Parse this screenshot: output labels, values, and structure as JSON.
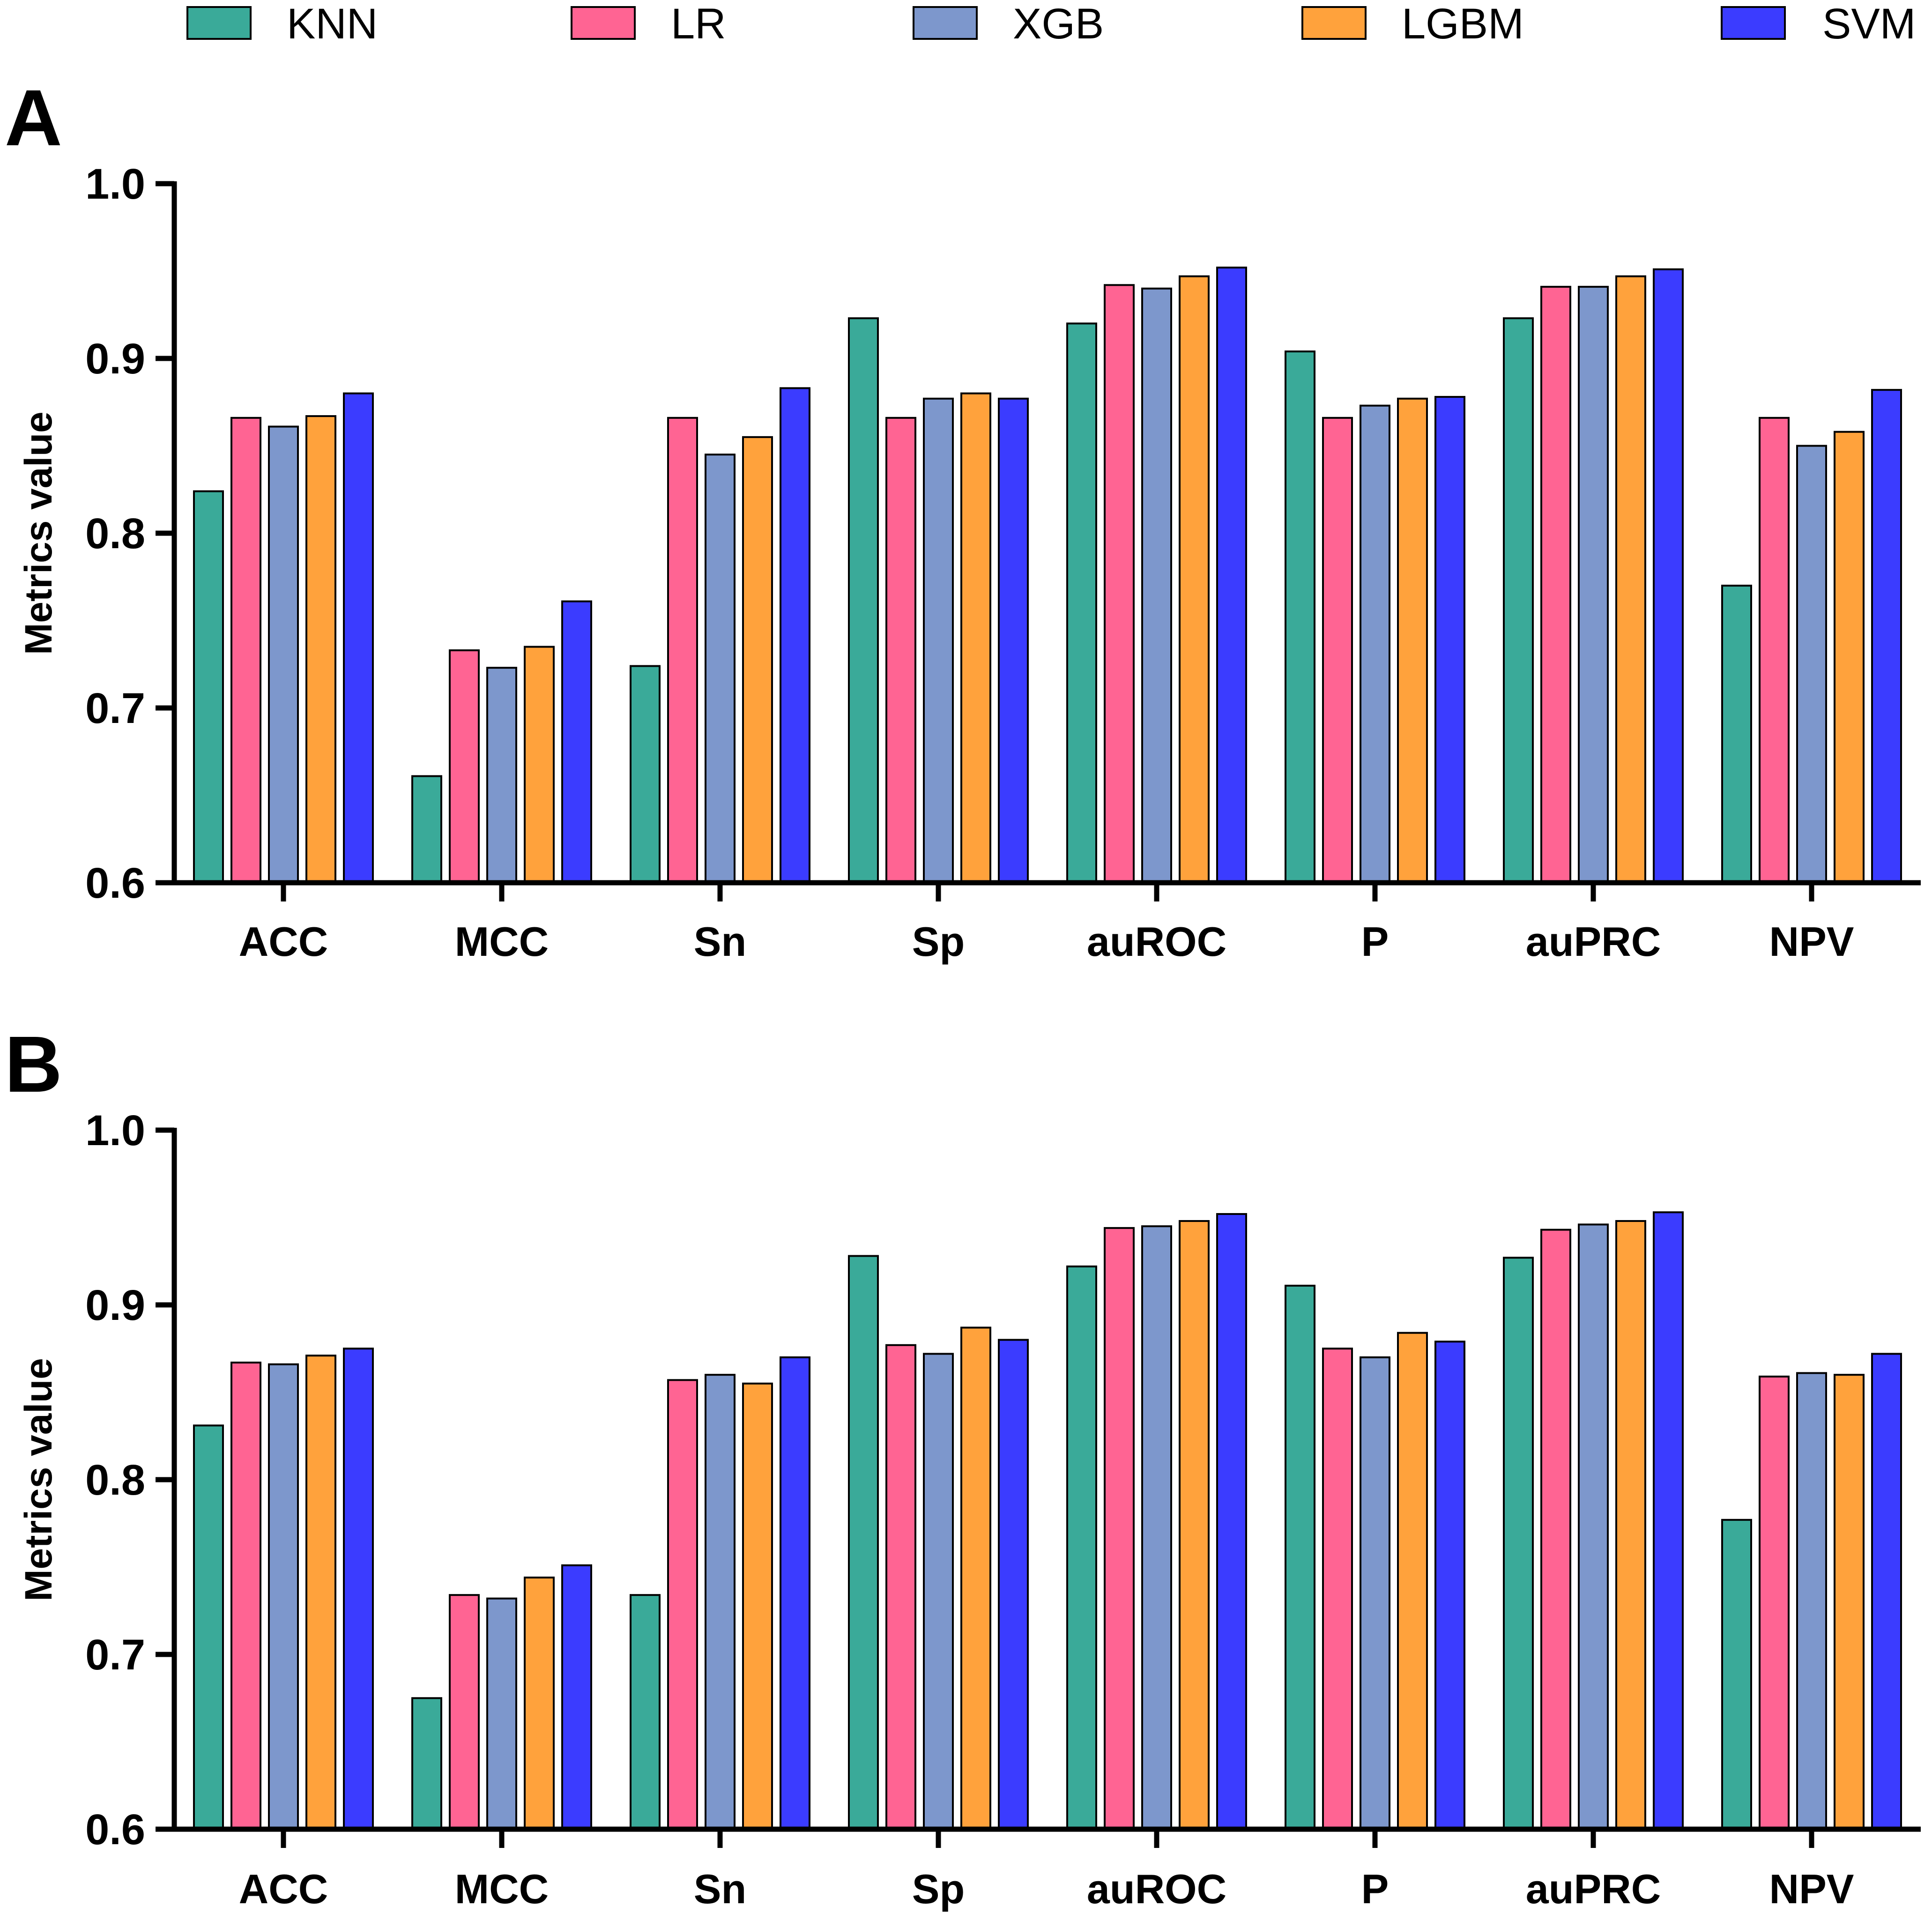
{
  "chart_data": [
    {
      "panel_label": "A",
      "type": "bar",
      "ylabel": "Metrics value",
      "ylim": [
        0.6,
        1.0
      ],
      "yticks": [
        "0.6",
        "0.7",
        "0.8",
        "0.9",
        "1.0"
      ],
      "categories": [
        "ACC",
        "MCC",
        "Sn",
        "Sp",
        "auROC",
        "P",
        "auPRC",
        "NPV"
      ],
      "series": [
        {
          "name": "KNN",
          "color": "#3aaa99",
          "values": [
            0.824,
            0.661,
            0.724,
            0.923,
            0.92,
            0.904,
            0.923,
            0.77
          ]
        },
        {
          "name": "LR",
          "color": "#ff6493",
          "values": [
            0.866,
            0.733,
            0.866,
            0.866,
            0.942,
            0.866,
            0.941,
            0.866
          ]
        },
        {
          "name": "XGB",
          "color": "#7d97cc",
          "values": [
            0.861,
            0.723,
            0.845,
            0.877,
            0.94,
            0.873,
            0.941,
            0.85
          ]
        },
        {
          "name": "LGBM",
          "color": "#ffa23c",
          "values": [
            0.867,
            0.735,
            0.855,
            0.88,
            0.947,
            0.877,
            0.947,
            0.858
          ]
        },
        {
          "name": "SVM",
          "color": "#3b3cff",
          "values": [
            0.88,
            0.761,
            0.883,
            0.877,
            0.952,
            0.878,
            0.951,
            0.882
          ]
        }
      ]
    },
    {
      "panel_label": "B",
      "type": "bar",
      "ylabel": "Metrics value",
      "ylim": [
        0.6,
        1.0
      ],
      "yticks": [
        "0.6",
        "0.7",
        "0.8",
        "0.9",
        "1.0"
      ],
      "categories": [
        "ACC",
        "MCC",
        "Sn",
        "Sp",
        "auROC",
        "P",
        "auPRC",
        "NPV"
      ],
      "series": [
        {
          "name": "KNN",
          "color": "#3aaa99",
          "values": [
            0.831,
            0.675,
            0.734,
            0.928,
            0.922,
            0.911,
            0.927,
            0.777
          ]
        },
        {
          "name": "LR",
          "color": "#ff6493",
          "values": [
            0.867,
            0.734,
            0.857,
            0.877,
            0.944,
            0.875,
            0.943,
            0.859
          ]
        },
        {
          "name": "XGB",
          "color": "#7d97cc",
          "values": [
            0.866,
            0.732,
            0.86,
            0.872,
            0.945,
            0.87,
            0.946,
            0.861
          ]
        },
        {
          "name": "LGBM",
          "color": "#ffa23c",
          "values": [
            0.871,
            0.744,
            0.855,
            0.887,
            0.948,
            0.884,
            0.948,
            0.86
          ]
        },
        {
          "name": "SVM",
          "color": "#3b3cff",
          "values": [
            0.875,
            0.751,
            0.87,
            0.88,
            0.952,
            0.879,
            0.953,
            0.872
          ]
        }
      ]
    }
  ],
  "legend": [
    {
      "name": "KNN",
      "color": "#3aaa99"
    },
    {
      "name": "LR",
      "color": "#ff6493"
    },
    {
      "name": "XGB",
      "color": "#7d97cc"
    },
    {
      "name": "LGBM",
      "color": "#ffa23c"
    },
    {
      "name": "SVM",
      "color": "#3b3cff"
    }
  ]
}
